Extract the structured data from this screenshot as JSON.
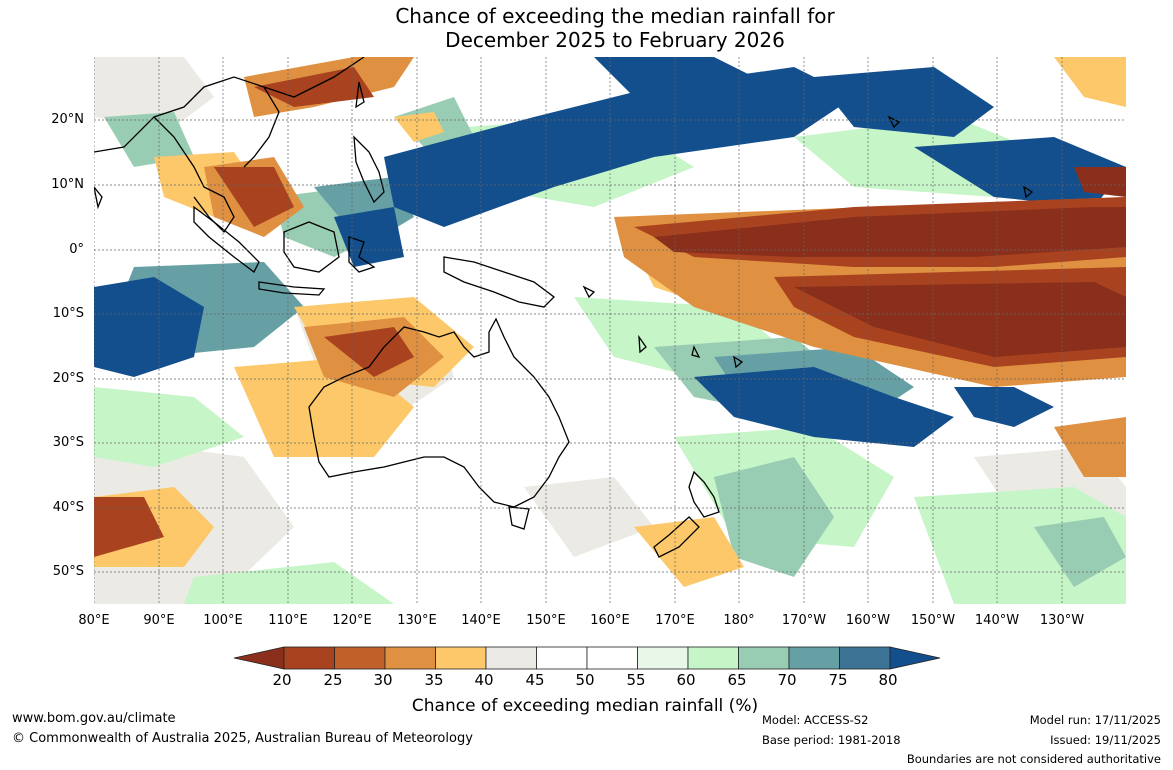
{
  "title": {
    "line1": "Chance of exceeding the median rainfall for",
    "line2": "December 2025 to February 2026"
  },
  "map": {
    "lat_labels": [
      "20°N",
      "10°N",
      "0°",
      "10°S",
      "20°S",
      "30°S",
      "40°S",
      "50°S"
    ],
    "lon_labels": [
      "80°E",
      "90°E",
      "100°E",
      "110°E",
      "120°E",
      "130°E",
      "140°E",
      "150°E",
      "160°E",
      "170°E",
      "180°",
      "170°W",
      "160°W",
      "150°W",
      "140°W",
      "130°W"
    ]
  },
  "colorbar": {
    "ticks": [
      "20",
      "25",
      "30",
      "35",
      "40",
      "45",
      "50",
      "55",
      "60",
      "65",
      "70",
      "75",
      "80"
    ],
    "colors": [
      "#8a2f1c",
      "#a8421f",
      "#c2602a",
      "#df9040",
      "#fcc86a",
      "#eceae4",
      "#ffffff",
      "#ffffff",
      "#e8f7e8",
      "#c6f5c8",
      "#98cdb4",
      "#66a0a4",
      "#3d7395",
      "#134f8c"
    ],
    "title": "Chance of exceeding median rainfall (%)"
  },
  "footer": {
    "website": "www.bom.gov.au/climate",
    "copyright": "© Commonwealth of Australia 2025, Australian Bureau of Meteorology",
    "model": "Model: ACCESS-S2",
    "base_period": "Base period: 1981-2018",
    "model_run": "Model run: 17/11/2025",
    "issued": "Issued: 19/11/2025",
    "disclaimer": "Boundaries are not considered authoritative"
  }
}
